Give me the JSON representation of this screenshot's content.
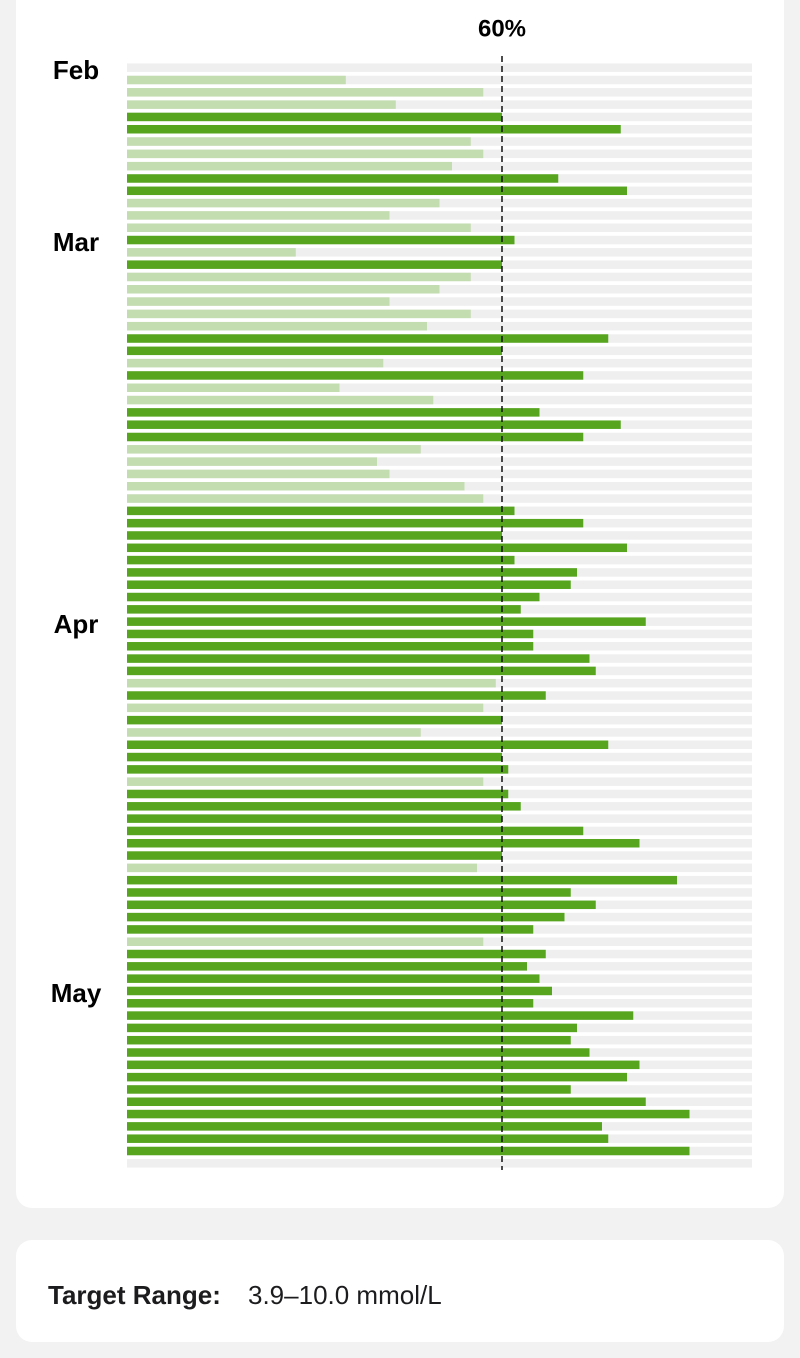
{
  "chart_data": {
    "type": "hbar",
    "threshold": {
      "value": 60,
      "label": "60%"
    },
    "xlim": [
      0,
      100
    ],
    "color_above": "#57a51f",
    "color_below": "#c3dcb0",
    "categories": [
      "Feb",
      null,
      null,
      null,
      null,
      null,
      null,
      null,
      null,
      null,
      null,
      null,
      null,
      null,
      "Mar",
      null,
      null,
      null,
      null,
      null,
      null,
      null,
      null,
      null,
      null,
      null,
      null,
      null,
      null,
      null,
      null,
      null,
      null,
      null,
      null,
      null,
      null,
      null,
      null,
      null,
      null,
      null,
      null,
      null,
      null,
      "Apr",
      null,
      null,
      null,
      null,
      null,
      null,
      null,
      null,
      null,
      null,
      null,
      null,
      null,
      null,
      null,
      null,
      null,
      null,
      null,
      null,
      null,
      null,
      null,
      null,
      null,
      null,
      null,
      null,
      null,
      "May",
      null,
      null,
      null,
      null,
      null,
      null,
      null,
      null,
      null,
      null,
      null,
      null
    ],
    "values": [
      35,
      57,
      43,
      60,
      79,
      55,
      57,
      52,
      69,
      80,
      50,
      42,
      55,
      62,
      27,
      60,
      55,
      50,
      42,
      55,
      48,
      77,
      60,
      41,
      73,
      34,
      49,
      66,
      79,
      73,
      47,
      40,
      42,
      54,
      57,
      62,
      73,
      60,
      80,
      62,
      72,
      71,
      66,
      63,
      83,
      65,
      65,
      74,
      75,
      59,
      67,
      57,
      60,
      47,
      77,
      60,
      61,
      57,
      61,
      63,
      60,
      73,
      82,
      60,
      56,
      88,
      71,
      75,
      70,
      65,
      57,
      67,
      64,
      66,
      68,
      65,
      81,
      72,
      71,
      74,
      82,
      80,
      71,
      83,
      90,
      76,
      77,
      90
    ]
  },
  "footer": {
    "label": "Target Range:",
    "value": "3.9–10.0 mmol/L"
  }
}
